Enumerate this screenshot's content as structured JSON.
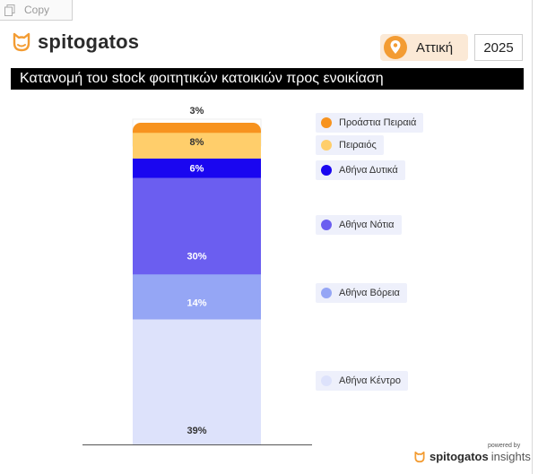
{
  "toolbar": {
    "copy_label": "Copy"
  },
  "header": {
    "brand": "spitogatos",
    "region": "Αττική",
    "year": "2025",
    "title": "Κατανομή του stock φοιτητικών κατοικιών προς ενοικίαση"
  },
  "colors": {
    "accent": "#f39c33",
    "title_bg": "#000000",
    "legend_bg": "#eef0fb"
  },
  "chart_data": {
    "type": "bar",
    "stacked": true,
    "ylim": [
      0,
      100
    ],
    "grid": false,
    "legend_position": "right",
    "series": [
      {
        "name": "Αθήνα Κέντρο",
        "value": 39,
        "label": "39%",
        "color": "#dde2fb"
      },
      {
        "name": "Αθήνα Βόρεια",
        "value": 14,
        "label": "14%",
        "color": "#95a6f5"
      },
      {
        "name": "Αθήνα Νότια",
        "value": 30,
        "label": "30%",
        "color": "#6b5ef0"
      },
      {
        "name": "Αθήνα Δυτικά",
        "value": 6,
        "label": "6%",
        "color": "#1a06f0"
      },
      {
        "name": "Πειραιός",
        "value": 8,
        "label": "8%",
        "color": "#ffce6b"
      },
      {
        "name": "Προάστια Πειραιά",
        "value": 3,
        "label": "3%",
        "color": "#f7931f"
      }
    ]
  },
  "footer": {
    "powered_by": "powered by",
    "brand": "spitogatos",
    "suffix": "insights"
  }
}
